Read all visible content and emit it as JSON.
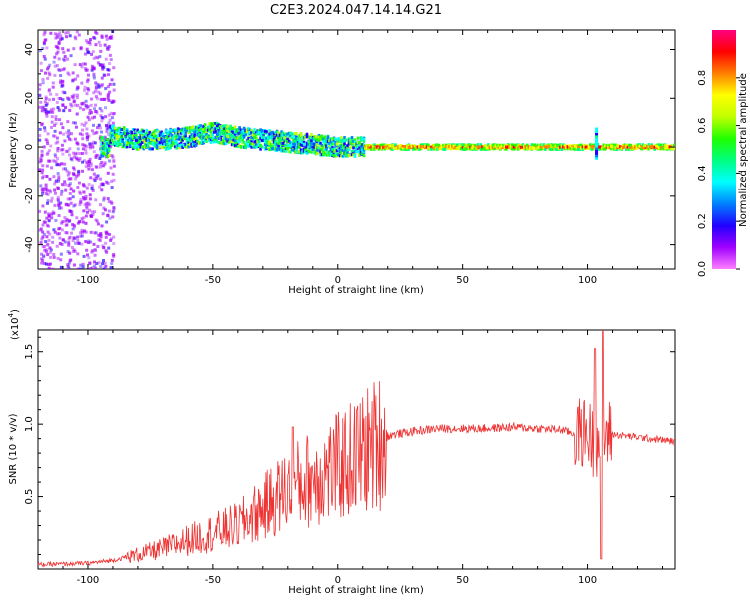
{
  "title": "C2E3.2024.047.14.14.G21",
  "chart_data": [
    {
      "type": "heatmap",
      "name": "spectrogram",
      "xlabel": "Height of straight line (km)",
      "ylabel": "Frequency (Hz)",
      "xlim": [
        -120,
        135
      ],
      "ylim": [
        -50,
        48
      ],
      "xticks": [
        -100,
        -50,
        0,
        50,
        100
      ],
      "yticks": [
        -40,
        -20,
        0,
        20,
        40
      ],
      "colorbar": {
        "label": "Normalized spectral amplitude",
        "range": [
          0,
          1
        ],
        "ticks": [
          "0.0",
          "0.2",
          "0.4",
          "0.6",
          "0.8"
        ],
        "colors": [
          "#ff80ff",
          "#a000ff",
          "#2000ff",
          "#0080ff",
          "#00ffff",
          "#00ff80",
          "#20ff00",
          "#c0ff00",
          "#ffff00",
          "#ff8000",
          "#ff0000",
          "#ff0080"
        ]
      },
      "ridge": [
        {
          "x": -92,
          "freq": 5
        },
        {
          "x": -80,
          "freq": 3
        },
        {
          "x": -70,
          "freq": 3
        },
        {
          "x": -60,
          "freq": 4
        },
        {
          "x": -50,
          "freq": 6
        },
        {
          "x": -40,
          "freq": 4
        },
        {
          "x": -30,
          "freq": 3
        },
        {
          "x": -20,
          "freq": 2
        },
        {
          "x": -10,
          "freq": 1
        },
        {
          "x": 0,
          "freq": 0
        },
        {
          "x": 10,
          "freq": 0
        },
        {
          "x": 135,
          "freq": 0
        }
      ]
    },
    {
      "type": "line",
      "name": "snr",
      "xlabel": "Height of straight line (km)",
      "ylabel": "SNR (10 * v/v)",
      "y_multiplier": "(x10",
      "y_multiplier_exp": "4",
      "xlim": [
        -120,
        135
      ],
      "ylim": [
        0,
        1.65
      ],
      "xticks": [
        -100,
        -50,
        0,
        50,
        100
      ],
      "yticks": [
        0.5,
        1.0,
        1.5
      ],
      "ytick_labels": [
        "0.5",
        "1.0",
        "1.5"
      ],
      "color": "#ee3333",
      "envelope": [
        {
          "x": -120,
          "y": 0.03
        },
        {
          "x": -100,
          "y": 0.04
        },
        {
          "x": -90,
          "y": 0.06
        },
        {
          "x": -80,
          "y": 0.1
        },
        {
          "x": -70,
          "y": 0.14
        },
        {
          "x": -60,
          "y": 0.2
        },
        {
          "x": -50,
          "y": 0.25
        },
        {
          "x": -40,
          "y": 0.3
        },
        {
          "x": -30,
          "y": 0.42
        },
        {
          "x": -20,
          "y": 0.55
        },
        {
          "x": -10,
          "y": 0.63
        },
        {
          "x": 0,
          "y": 0.7
        },
        {
          "x": 10,
          "y": 0.8
        },
        {
          "x": 20,
          "y": 0.92
        },
        {
          "x": 30,
          "y": 0.95
        },
        {
          "x": 40,
          "y": 0.97
        },
        {
          "x": 50,
          "y": 0.97
        },
        {
          "x": 60,
          "y": 0.97
        },
        {
          "x": 70,
          "y": 0.98
        },
        {
          "x": 80,
          "y": 0.97
        },
        {
          "x": 90,
          "y": 0.96
        },
        {
          "x": 95,
          "y": 0.93
        },
        {
          "x": 100,
          "y": 0.95
        },
        {
          "x": 103,
          "y": 0.85
        },
        {
          "x": 105,
          "y": 0.9
        },
        {
          "x": 108,
          "y": 0.93
        },
        {
          "x": 110,
          "y": 0.93
        },
        {
          "x": 120,
          "y": 0.91
        },
        {
          "x": 135,
          "y": 0.88
        }
      ],
      "spikes": [
        {
          "x": -18,
          "y": 0.98
        },
        {
          "x": 103,
          "y": 1.52
        },
        {
          "x": 106,
          "y": 1.65
        },
        {
          "x": 105.5,
          "y": 0.07
        }
      ]
    }
  ]
}
